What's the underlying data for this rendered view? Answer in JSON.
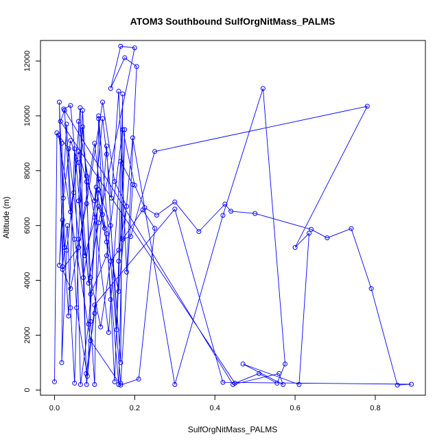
{
  "chart_data": {
    "type": "line",
    "title": "ATOM3 Southbound SulfOrgNitMass_PALMS",
    "xlabel": "SulfOrgNitMass_PALMS",
    "ylabel": "Altitude (m)",
    "xlim": [
      -0.035,
      0.925
    ],
    "ylim": [
      -190,
      12750
    ],
    "x_ticks": [
      0.0,
      0.2,
      0.4,
      0.6,
      0.8
    ],
    "x_tick_labels": [
      "0.0",
      "0.2",
      "0.4",
      "0.6",
      "0.8"
    ],
    "y_ticks": [
      0,
      2000,
      4000,
      6000,
      8000,
      10000,
      12000
    ],
    "y_tick_labels": [
      "0",
      "2000",
      "4000",
      "6000",
      "8000",
      "10000",
      "12000"
    ],
    "grid": false,
    "legend": "none",
    "series_color": "#0000ff",
    "series": [
      {
        "x": [
          0.0,
          0.006,
          0.018,
          0.025,
          0.012,
          0.02,
          0.032,
          0.04,
          0.05,
          0.06,
          0.07,
          0.08,
          0.09,
          0.1,
          0.11,
          0.12,
          0.13,
          0.14,
          0.15,
          0.16,
          0.17,
          0.165,
          0.14,
          0.11,
          0.085,
          0.065,
          0.05,
          0.035,
          0.02,
          0.012,
          0.03,
          0.055,
          0.082,
          0.104,
          0.13,
          0.16,
          0.175,
          0.155,
          0.13,
          0.1,
          0.079,
          0.064,
          0.048,
          0.03,
          0.018,
          0.022,
          0.04,
          0.06,
          0.085,
          0.11,
          0.2,
          0.165,
          0.14,
          0.175,
          0.205,
          0.18,
          0.16,
          0.142,
          0.13,
          0.12,
          0.1,
          0.08,
          0.06,
          0.04,
          0.025,
          0.015,
          0.45,
          0.51,
          0.555,
          0.575,
          0.52,
          0.42,
          0.3,
          0.195,
          0.16,
          0.11,
          0.075,
          0.04,
          0.023,
          0.445,
          0.56,
          0.57,
          0.47,
          0.61,
          0.635,
          0.6,
          0.78,
          0.25,
          0.19,
          0.17,
          0.22,
          0.25,
          0.21,
          0.165,
          0.09,
          0.05,
          0.01,
          0.035,
          0.072,
          0.11,
          0.125,
          0.1,
          0.06,
          0.02,
          0.04,
          0.08,
          0.12,
          0.15,
          0.18,
          0.16,
          0.14,
          0.115,
          0.09,
          0.07,
          0.06,
          0.09,
          0.13,
          0.17,
          0.2,
          0.225,
          0.255,
          0.3,
          0.36,
          0.425,
          0.44,
          0.5,
          0.64,
          0.68,
          0.74,
          0.79,
          0.855,
          0.89,
          0.42,
          0.3,
          0.1,
          0.08,
          0.06,
          0.1,
          0.135,
          0.165,
          0.195,
          0.165,
          0.11
        ],
        "y": [
          300,
          9380,
          9000,
          5200,
          10500,
          4500,
          6000,
          3000,
          250,
          5500,
          9600,
          7800,
          2500,
          200,
          9900,
          6400,
          5700,
          3300,
          300,
          4700,
          10800,
          1000,
          6000,
          7300,
          2400,
          200,
          8800,
          2700,
          6200,
          4550,
          9700,
          3000,
          500,
          7400,
          5400,
          200,
          9500,
          2200,
          8900,
          2800,
          600,
          10300,
          7200,
          5100,
          1000,
          7000,
          9100,
          8300,
          3900,
          6100,
          12480,
          12540,
          11000,
          12120,
          11800,
          4300,
          10900,
          7000,
          8600,
          9900,
          6900,
          7600,
          8700,
          6500,
          10200,
          9800,
          250,
          600,
          250,
          950,
          11000,
          6370,
          200,
          9200,
          3600,
          6700,
          4900,
          10380,
          10250,
          200,
          600,
          200,
          950,
          200,
          5720,
          5200,
          10350,
          8700,
          5600,
          5500,
          6570,
          5900,
          400,
          180,
          1800,
          5500,
          9300,
          8800,
          4100,
          7700,
          5900,
          9000,
          5200,
          4400,
          3700,
          6800,
          10500,
          7600,
          6700,
          5100,
          4700,
          2300,
          4100,
          10200,
          6900,
          3500,
          4900,
          9500,
          7470,
          6650,
          6380,
          6860,
          5780,
          6780,
          6520,
          6440,
          5860,
          5550,
          5890,
          3700,
          180,
          210,
          280,
          6600,
          3100,
          200,
          9800,
          6300,
          2100,
          8340,
          7500,
          250,
          10000
        ]
      }
    ]
  }
}
